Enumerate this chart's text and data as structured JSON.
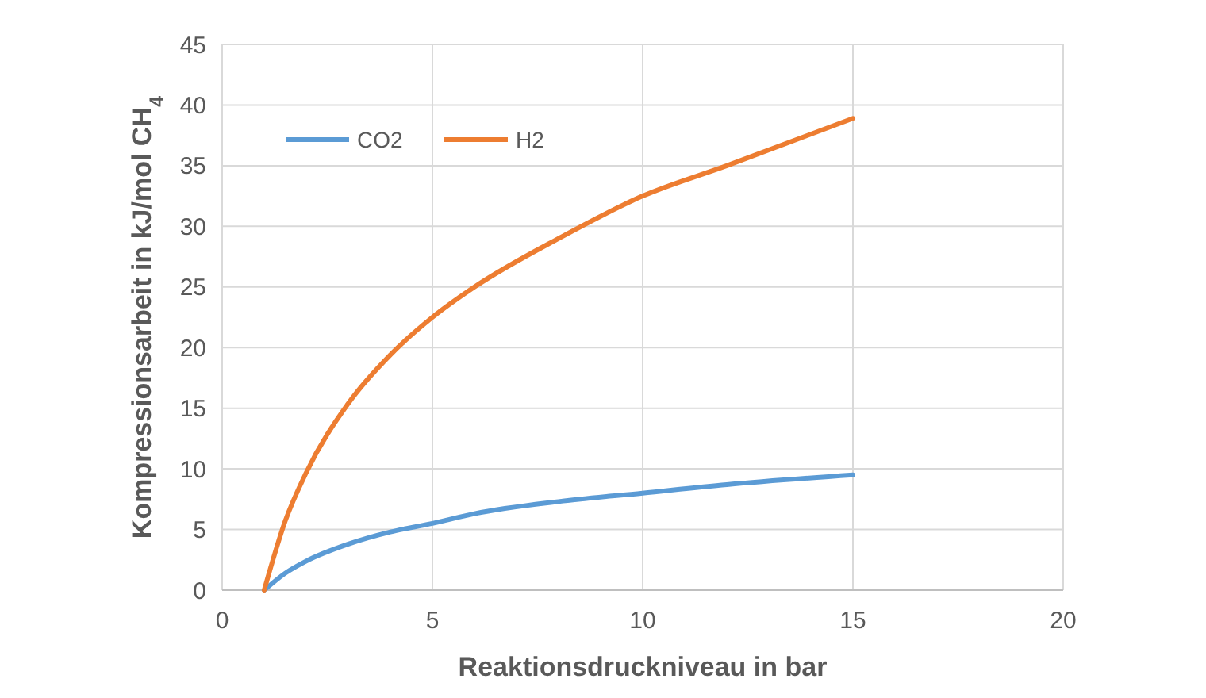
{
  "chart_data": {
    "type": "line",
    "xlabel": "Reaktionsdruckniveau in bar",
    "ylabel": "Kompressionsarbeit in kJ/mol CH$_{4}$",
    "x": [
      1,
      1.5,
      2,
      3,
      4,
      5,
      6,
      8,
      10,
      12,
      15
    ],
    "series": [
      {
        "name": "CO2",
        "color": "#5b9bd5",
        "values": [
          0,
          1.4,
          2.4,
          3.8,
          4.8,
          5.5,
          6.3,
          7.3,
          8,
          8.7,
          9.5
        ]
      },
      {
        "name": "H2",
        "color": "#ed7d31",
        "values": [
          0,
          5.7,
          9.7,
          15.4,
          19.4,
          22.5,
          25,
          29,
          32.5,
          35,
          38.9
        ]
      }
    ],
    "xlim": [
      0,
      20
    ],
    "xticks": [
      0,
      5,
      10,
      15,
      20
    ],
    "ylim": [
      0,
      45
    ],
    "yticks": [
      0,
      5,
      10,
      15,
      20,
      25,
      30,
      35,
      40,
      45
    ],
    "grid": true,
    "legend": "top left",
    "marker": "none",
    "line_style": "solid"
  }
}
